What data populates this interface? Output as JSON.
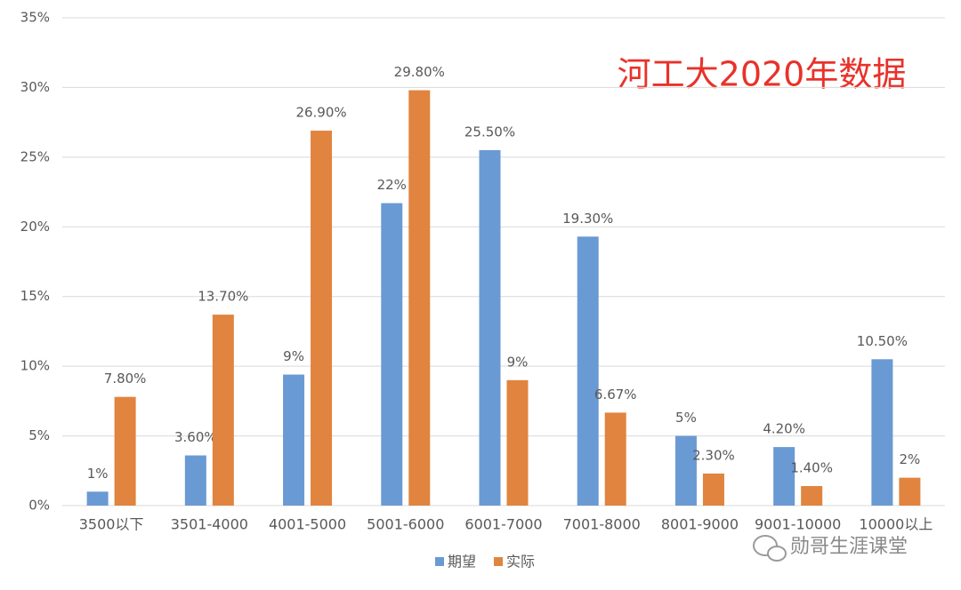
{
  "chart_data": {
    "type": "bar",
    "annotation": "河工大2020年数据",
    "watermark": "勋哥生涯课堂",
    "categories": [
      "3500以下",
      "3501-4000",
      "4001-5000",
      "5001-6000",
      "6001-7000",
      "7001-8000",
      "8001-9000",
      "9001-10000",
      "10000以上"
    ],
    "series": [
      {
        "name": "期望",
        "color": "#6a9ad3",
        "values": [
          1,
          3.6,
          9.4,
          21.7,
          25.5,
          19.3,
          5,
          4.2,
          10.5
        ],
        "value_labels": [
          "1%",
          "3.60%",
          "9%",
          "22%",
          "25.50%",
          "19.30%",
          "5%",
          "4.20%",
          "10.50%"
        ]
      },
      {
        "name": "实际",
        "color": "#e0843f",
        "values": [
          7.8,
          13.7,
          26.9,
          29.8,
          9,
          6.67,
          2.3,
          1.4,
          2
        ],
        "value_labels": [
          "7.80%",
          "13.70%",
          "26.90%",
          "29.80%",
          "9%",
          "6.67%",
          "2.30%",
          "1.40%",
          "2%"
        ]
      }
    ],
    "ylim": [
      0,
      35
    ],
    "yticks": [
      {
        "value": 0,
        "label": "0%"
      },
      {
        "value": 5,
        "label": "5%"
      },
      {
        "value": 10,
        "label": "10%"
      },
      {
        "value": 15,
        "label": "15%"
      },
      {
        "value": 20,
        "label": "20%"
      },
      {
        "value": 25,
        "label": "25%"
      },
      {
        "value": 30,
        "label": "30%"
      },
      {
        "value": 35,
        "label": "35%"
      }
    ],
    "grid": true,
    "legend": "bottom"
  }
}
